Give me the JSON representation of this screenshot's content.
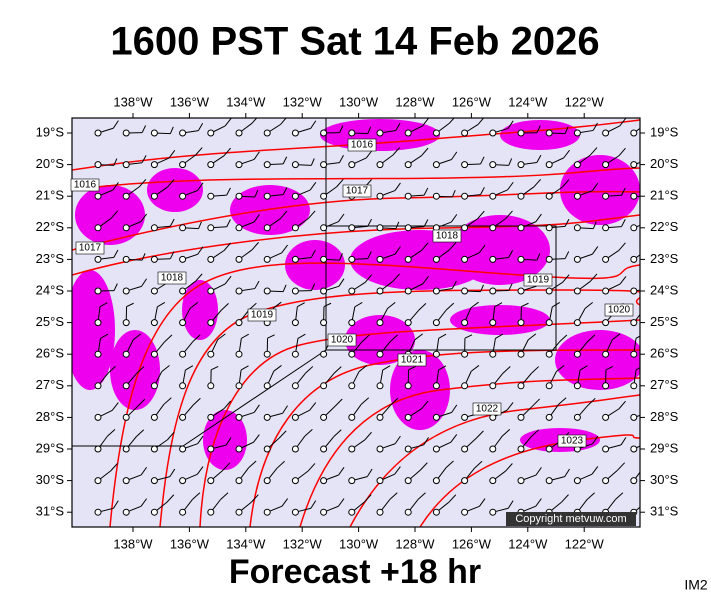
{
  "header": {
    "title": "1600 PST Sat 14 Feb 2026"
  },
  "footer": {
    "forecast": "Forecast +18 hr",
    "id": "IM2"
  },
  "map": {
    "copyright": "Copyright metvuw.com",
    "longitude_labels": [
      "138°W",
      "136°W",
      "134°W",
      "132°W",
      "130°W",
      "128°W",
      "126°W",
      "124°W",
      "122°W"
    ],
    "latitude_labels": [
      "19°S",
      "20°S",
      "21°S",
      "22°S",
      "23°S",
      "24°S",
      "25°S",
      "26°S",
      "27°S",
      "28°S",
      "29°S",
      "30°S",
      "31°S"
    ],
    "isobar_labels": [
      "1016",
      "1016",
      "1017",
      "1018",
      "1017",
      "1018",
      "1019",
      "1019",
      "1020",
      "1020",
      "1021",
      "1022",
      "1023"
    ]
  }
}
